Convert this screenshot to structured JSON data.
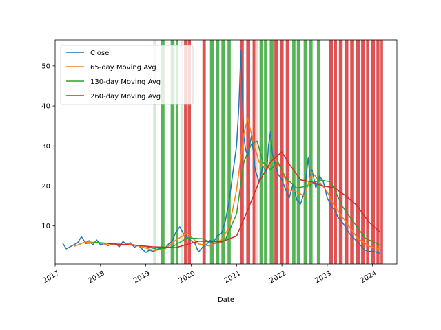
{
  "chart_data": {
    "type": "line",
    "title": "",
    "xlabel": "Date",
    "ylabel": "",
    "xlim": [
      "2017-01-01",
      "2024-07-15"
    ],
    "ylim": [
      0.5,
      56.5
    ],
    "x_ticks": [
      "2017",
      "2018",
      "2019",
      "2020",
      "2021",
      "2022",
      "2023",
      "2024"
    ],
    "y_ticks": [
      10,
      20,
      30,
      40,
      50
    ],
    "grid": false,
    "legend_position": "upper-left",
    "colors": {
      "close": "#1f77b4",
      "ma65": "#ff7f0e",
      "ma130": "#2ca02c",
      "ma260": "#d62728",
      "buy_band": "#2ca02c",
      "sell_band": "#d62728"
    },
    "series": [
      {
        "name": "Close",
        "color": "#1f77b4",
        "points": [
          [
            "2017-03-01",
            5.8
          ],
          [
            "2017-04-01",
            4.3
          ],
          [
            "2017-05-01",
            4.8
          ],
          [
            "2017-06-01",
            5.3
          ],
          [
            "2017-07-01",
            5.8
          ],
          [
            "2017-08-01",
            7.3
          ],
          [
            "2017-09-01",
            5.8
          ],
          [
            "2017-10-01",
            6.3
          ],
          [
            "2017-11-01",
            5.3
          ],
          [
            "2017-12-01",
            6.5
          ],
          [
            "2018-01-01",
            5.3
          ],
          [
            "2018-02-01",
            5.6
          ],
          [
            "2018-03-01",
            5.1
          ],
          [
            "2018-04-01",
            5.4
          ],
          [
            "2018-05-01",
            5.7
          ],
          [
            "2018-06-01",
            4.8
          ],
          [
            "2018-07-01",
            6.1
          ],
          [
            "2018-08-01",
            5.5
          ],
          [
            "2018-09-01",
            5.8
          ],
          [
            "2018-10-01",
            4.7
          ],
          [
            "2018-11-01",
            5.2
          ],
          [
            "2018-12-01",
            4.3
          ],
          [
            "2019-01-01",
            3.4
          ],
          [
            "2019-02-01",
            4.0
          ],
          [
            "2019-03-01",
            3.6
          ],
          [
            "2019-04-01",
            4.1
          ],
          [
            "2019-05-01",
            4.6
          ],
          [
            "2019-06-01",
            4.3
          ],
          [
            "2019-07-01",
            5.4
          ],
          [
            "2019-08-01",
            6.2
          ],
          [
            "2019-09-01",
            8.5
          ],
          [
            "2019-10-01",
            9.8
          ],
          [
            "2019-11-01",
            8.0
          ],
          [
            "2019-12-01",
            7.1
          ],
          [
            "2020-01-01",
            6.3
          ],
          [
            "2020-02-01",
            5.6
          ],
          [
            "2020-03-01",
            3.5
          ],
          [
            "2020-04-01",
            4.7
          ],
          [
            "2020-05-01",
            5.3
          ],
          [
            "2020-06-01",
            6.4
          ],
          [
            "2020-07-01",
            6.1
          ],
          [
            "2020-08-01",
            7.6
          ],
          [
            "2020-09-01",
            8.1
          ],
          [
            "2020-10-01",
            11.0
          ],
          [
            "2020-11-01",
            16.0
          ],
          [
            "2020-12-01",
            23.0
          ],
          [
            "2021-01-01",
            30.0
          ],
          [
            "2021-01-20",
            40.0
          ],
          [
            "2021-02-05",
            54.0
          ],
          [
            "2021-02-15",
            44.0
          ],
          [
            "2021-03-01",
            32.0
          ],
          [
            "2021-03-15",
            29.0
          ],
          [
            "2021-04-01",
            27.5
          ],
          [
            "2021-05-01",
            32.5
          ],
          [
            "2021-06-01",
            24.0
          ],
          [
            "2021-07-01",
            21.0
          ],
          [
            "2021-08-01",
            25.0
          ],
          [
            "2021-09-01",
            23.5
          ],
          [
            "2021-09-15",
            30.0
          ],
          [
            "2021-10-01",
            33.5
          ],
          [
            "2021-10-15",
            28.5
          ],
          [
            "2021-11-01",
            26.0
          ],
          [
            "2021-12-01",
            23.0
          ],
          [
            "2022-01-01",
            21.5
          ],
          [
            "2022-02-01",
            19.0
          ],
          [
            "2022-03-01",
            17.0
          ],
          [
            "2022-04-01",
            20.5
          ],
          [
            "2022-05-01",
            16.5
          ],
          [
            "2022-06-01",
            15.5
          ],
          [
            "2022-07-01",
            18.5
          ],
          [
            "2022-08-01",
            27.0
          ],
          [
            "2022-08-15",
            22.0
          ],
          [
            "2022-09-01",
            24.0
          ],
          [
            "2022-10-01",
            19.5
          ],
          [
            "2022-11-01",
            22.5
          ],
          [
            "2022-12-01",
            21.0
          ],
          [
            "2023-01-01",
            17.0
          ],
          [
            "2023-02-01",
            15.0
          ],
          [
            "2023-03-01",
            14.0
          ],
          [
            "2023-04-01",
            12.0
          ],
          [
            "2023-05-01",
            11.0
          ],
          [
            "2023-06-01",
            9.5
          ],
          [
            "2023-07-01",
            8.0
          ],
          [
            "2023-08-01",
            7.0
          ],
          [
            "2023-09-01",
            6.0
          ],
          [
            "2023-10-01",
            5.0
          ],
          [
            "2023-11-01",
            4.0
          ],
          [
            "2023-12-01",
            3.6
          ],
          [
            "2024-01-01",
            3.8
          ],
          [
            "2024-02-01",
            3.4
          ],
          [
            "2024-03-01",
            3.2
          ]
        ]
      },
      {
        "name": "65-day Moving Avg",
        "color": "#ff7f0e",
        "points": [
          [
            "2017-06-01",
            4.9
          ],
          [
            "2017-09-01",
            6.0
          ],
          [
            "2017-12-01",
            5.9
          ],
          [
            "2018-03-01",
            5.3
          ],
          [
            "2018-06-01",
            5.3
          ],
          [
            "2018-09-01",
            5.5
          ],
          [
            "2018-12-01",
            4.8
          ],
          [
            "2019-03-01",
            3.9
          ],
          [
            "2019-06-01",
            4.2
          ],
          [
            "2019-09-01",
            6.5
          ],
          [
            "2019-12-01",
            8.2
          ],
          [
            "2020-03-01",
            5.5
          ],
          [
            "2020-06-01",
            5.0
          ],
          [
            "2020-09-01",
            6.5
          ],
          [
            "2020-11-01",
            9.5
          ],
          [
            "2021-01-01",
            19.0
          ],
          [
            "2021-03-01",
            33.0
          ],
          [
            "2021-04-01",
            37.0
          ],
          [
            "2021-05-15",
            31.0
          ],
          [
            "2021-07-01",
            26.0
          ],
          [
            "2021-09-01",
            24.0
          ],
          [
            "2021-11-01",
            27.0
          ],
          [
            "2022-01-01",
            24.0
          ],
          [
            "2022-03-01",
            19.0
          ],
          [
            "2022-05-01",
            18.5
          ],
          [
            "2022-07-01",
            17.5
          ],
          [
            "2022-09-01",
            23.5
          ],
          [
            "2022-11-01",
            21.0
          ],
          [
            "2023-01-01",
            18.5
          ],
          [
            "2023-03-01",
            15.0
          ],
          [
            "2023-06-01",
            11.0
          ],
          [
            "2023-09-01",
            7.0
          ],
          [
            "2023-12-01",
            5.0
          ],
          [
            "2024-03-01",
            4.2
          ]
        ]
      },
      {
        "name": "130-day Moving Avg",
        "color": "#2ca02c",
        "points": [
          [
            "2017-09-01",
            5.6
          ],
          [
            "2017-12-01",
            5.9
          ],
          [
            "2018-06-01",
            5.4
          ],
          [
            "2018-12-01",
            5.1
          ],
          [
            "2019-04-01",
            4.2
          ],
          [
            "2019-08-01",
            4.8
          ],
          [
            "2019-12-01",
            7.0
          ],
          [
            "2020-04-01",
            6.8
          ],
          [
            "2020-07-01",
            5.6
          ],
          [
            "2020-10-01",
            6.4
          ],
          [
            "2021-01-01",
            13.0
          ],
          [
            "2021-03-01",
            26.0
          ],
          [
            "2021-05-01",
            30.5
          ],
          [
            "2021-06-15",
            31.2
          ],
          [
            "2021-08-01",
            26.0
          ],
          [
            "2021-10-01",
            24.0
          ],
          [
            "2021-12-01",
            26.0
          ],
          [
            "2022-02-01",
            22.0
          ],
          [
            "2022-05-01",
            19.5
          ],
          [
            "2022-08-01",
            20.0
          ],
          [
            "2022-11-01",
            21.5
          ],
          [
            "2023-02-01",
            21.0
          ],
          [
            "2023-05-01",
            15.0
          ],
          [
            "2023-08-01",
            11.0
          ],
          [
            "2023-11-01",
            7.0
          ],
          [
            "2024-03-01",
            5.2
          ]
        ]
      },
      {
        "name": "260-day Moving Avg",
        "color": "#d62728",
        "points": [
          [
            "2018-03-01",
            5.6
          ],
          [
            "2018-09-01",
            5.3
          ],
          [
            "2019-03-01",
            4.8
          ],
          [
            "2019-09-01",
            4.6
          ],
          [
            "2020-03-01",
            6.2
          ],
          [
            "2020-09-01",
            6.0
          ],
          [
            "2021-01-01",
            7.5
          ],
          [
            "2021-04-01",
            14.0
          ],
          [
            "2021-07-01",
            21.0
          ],
          [
            "2021-10-01",
            26.0
          ],
          [
            "2022-01-01",
            28.5
          ],
          [
            "2022-03-01",
            25.5
          ],
          [
            "2022-06-01",
            21.5
          ],
          [
            "2022-09-01",
            21.0
          ],
          [
            "2022-12-01",
            20.0
          ],
          [
            "2023-03-01",
            19.5
          ],
          [
            "2023-06-01",
            17.5
          ],
          [
            "2023-09-01",
            15.0
          ],
          [
            "2023-12-01",
            11.0
          ],
          [
            "2024-03-01",
            8.5
          ]
        ]
      }
    ],
    "bands": [
      {
        "start": "2019-03-01",
        "end": "2019-03-25",
        "color": "#2ca02c",
        "opacity": 0.2
      },
      {
        "start": "2019-05-01",
        "end": "2019-06-01",
        "color": "#2ca02c",
        "opacity": 0.8
      },
      {
        "start": "2019-07-20",
        "end": "2019-08-20",
        "color": "#2ca02c",
        "opacity": 0.8
      },
      {
        "start": "2019-09-01",
        "end": "2019-09-20",
        "color": "#2ca02c",
        "opacity": 0.8
      },
      {
        "start": "2019-10-10",
        "end": "2019-11-01",
        "color": "#2ca02c",
        "opacity": 0.2
      },
      {
        "start": "2019-11-05",
        "end": "2019-11-28",
        "color": "#d62728",
        "opacity": 0.8
      },
      {
        "start": "2019-12-05",
        "end": "2019-12-30",
        "color": "#d62728",
        "opacity": 0.8
      },
      {
        "start": "2020-04-01",
        "end": "2020-04-28",
        "color": "#d62728",
        "opacity": 0.8
      },
      {
        "start": "2020-06-01",
        "end": "2020-06-30",
        "color": "#2ca02c",
        "opacity": 0.8
      },
      {
        "start": "2020-07-20",
        "end": "2020-08-15",
        "color": "#2ca02c",
        "opacity": 0.8
      },
      {
        "start": "2020-09-01",
        "end": "2020-09-30",
        "color": "#2ca02c",
        "opacity": 0.8
      },
      {
        "start": "2020-10-20",
        "end": "2020-11-15",
        "color": "#2ca02c",
        "opacity": 0.8
      },
      {
        "start": "2021-02-01",
        "end": "2021-02-28",
        "color": "#d62728",
        "opacity": 0.8
      },
      {
        "start": "2021-03-20",
        "end": "2021-04-20",
        "color": "#d62728",
        "opacity": 0.8
      },
      {
        "start": "2021-05-10",
        "end": "2021-06-01",
        "color": "#d62728",
        "opacity": 0.8
      },
      {
        "start": "2021-06-05",
        "end": "2021-06-25",
        "color": "#d62728",
        "opacity": 0.2
      },
      {
        "start": "2021-07-05",
        "end": "2021-07-30",
        "color": "#2ca02c",
        "opacity": 0.8
      },
      {
        "start": "2021-08-10",
        "end": "2021-09-05",
        "color": "#2ca02c",
        "opacity": 0.8
      },
      {
        "start": "2021-09-25",
        "end": "2021-10-25",
        "color": "#2ca02c",
        "opacity": 0.8
      },
      {
        "start": "2021-11-01",
        "end": "2021-11-30",
        "color": "#d62728",
        "opacity": 0.8
      },
      {
        "start": "2021-12-20",
        "end": "2022-01-15",
        "color": "#d62728",
        "opacity": 0.8
      },
      {
        "start": "2022-02-01",
        "end": "2022-02-25",
        "color": "#d62728",
        "opacity": 0.8
      },
      {
        "start": "2022-03-25",
        "end": "2022-04-20",
        "color": "#2ca02c",
        "opacity": 0.8
      },
      {
        "start": "2022-05-01",
        "end": "2022-05-30",
        "color": "#2ca02c",
        "opacity": 0.8
      },
      {
        "start": "2022-06-25",
        "end": "2022-07-25",
        "color": "#2ca02c",
        "opacity": 0.8
      },
      {
        "start": "2022-08-05",
        "end": "2022-09-05",
        "color": "#2ca02c",
        "opacity": 0.8
      },
      {
        "start": "2022-10-10",
        "end": "2022-11-05",
        "color": "#2ca02c",
        "opacity": 0.8
      },
      {
        "start": "2023-01-15",
        "end": "2023-02-15",
        "color": "#d62728",
        "opacity": 0.8
      },
      {
        "start": "2023-02-25",
        "end": "2023-03-20",
        "color": "#d62728",
        "opacity": 0.8
      },
      {
        "start": "2023-04-05",
        "end": "2023-05-05",
        "color": "#d62728",
        "opacity": 0.8
      },
      {
        "start": "2023-05-20",
        "end": "2023-06-20",
        "color": "#d62728",
        "opacity": 0.8
      },
      {
        "start": "2023-07-05",
        "end": "2023-08-05",
        "color": "#d62728",
        "opacity": 0.8
      },
      {
        "start": "2023-08-20",
        "end": "2023-09-20",
        "color": "#d62728",
        "opacity": 0.8
      },
      {
        "start": "2023-10-01",
        "end": "2023-10-30",
        "color": "#d62728",
        "opacity": 0.8
      },
      {
        "start": "2023-11-10",
        "end": "2023-12-05",
        "color": "#d62728",
        "opacity": 0.8
      },
      {
        "start": "2023-12-20",
        "end": "2024-01-20",
        "color": "#d62728",
        "opacity": 0.8
      },
      {
        "start": "2024-02-01",
        "end": "2024-02-25",
        "color": "#d62728",
        "opacity": 0.8
      },
      {
        "start": "2024-03-05",
        "end": "2024-03-25",
        "color": "#d62728",
        "opacity": 0.8
      }
    ]
  }
}
